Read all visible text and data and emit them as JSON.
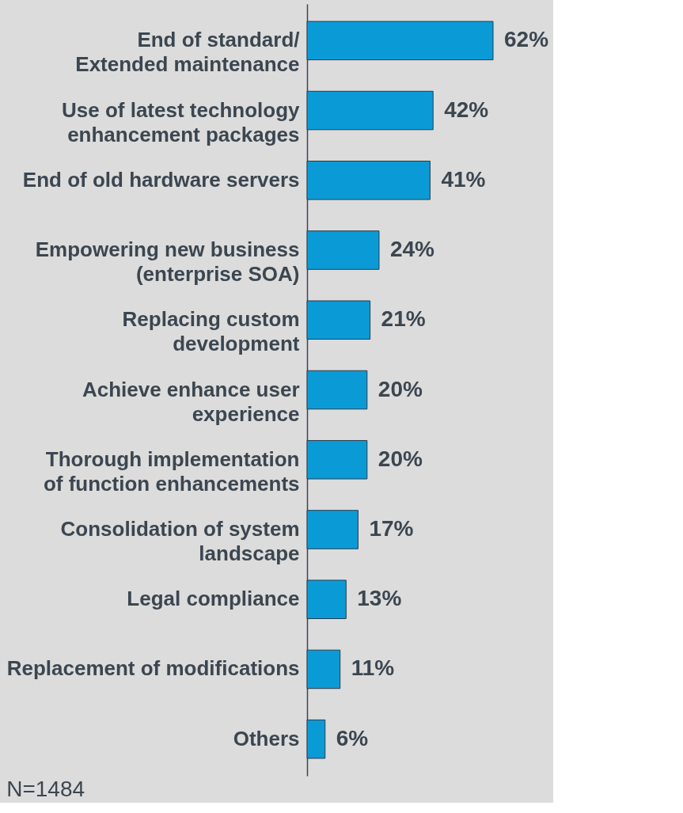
{
  "chart_data": {
    "type": "bar",
    "orientation": "horizontal",
    "data_labels": true,
    "categories": [
      "End of standard/\nExtended maintenance",
      "Use of latest technology\nenhancement packages",
      "End of old hardware servers",
      "Empowering new business\n(enterprise SOA)",
      "Replacing custom\ndevelopment",
      "Achieve enhance user\nexperience",
      "Thorough implementation\nof function enhancements",
      "Consolidation of system\nlandscape",
      "Legal compliance",
      "Replacement of modifications",
      "Others"
    ],
    "values": [
      62,
      42,
      41,
      24,
      21,
      20,
      20,
      17,
      13,
      11,
      6
    ],
    "value_labels": [
      "62%",
      "42%",
      "41%",
      "24%",
      "21%",
      "20%",
      "20%",
      "17%",
      "13%",
      "11%",
      "6%"
    ],
    "color": "#0a9bd7",
    "annotations": [
      "N=1484"
    ]
  }
}
